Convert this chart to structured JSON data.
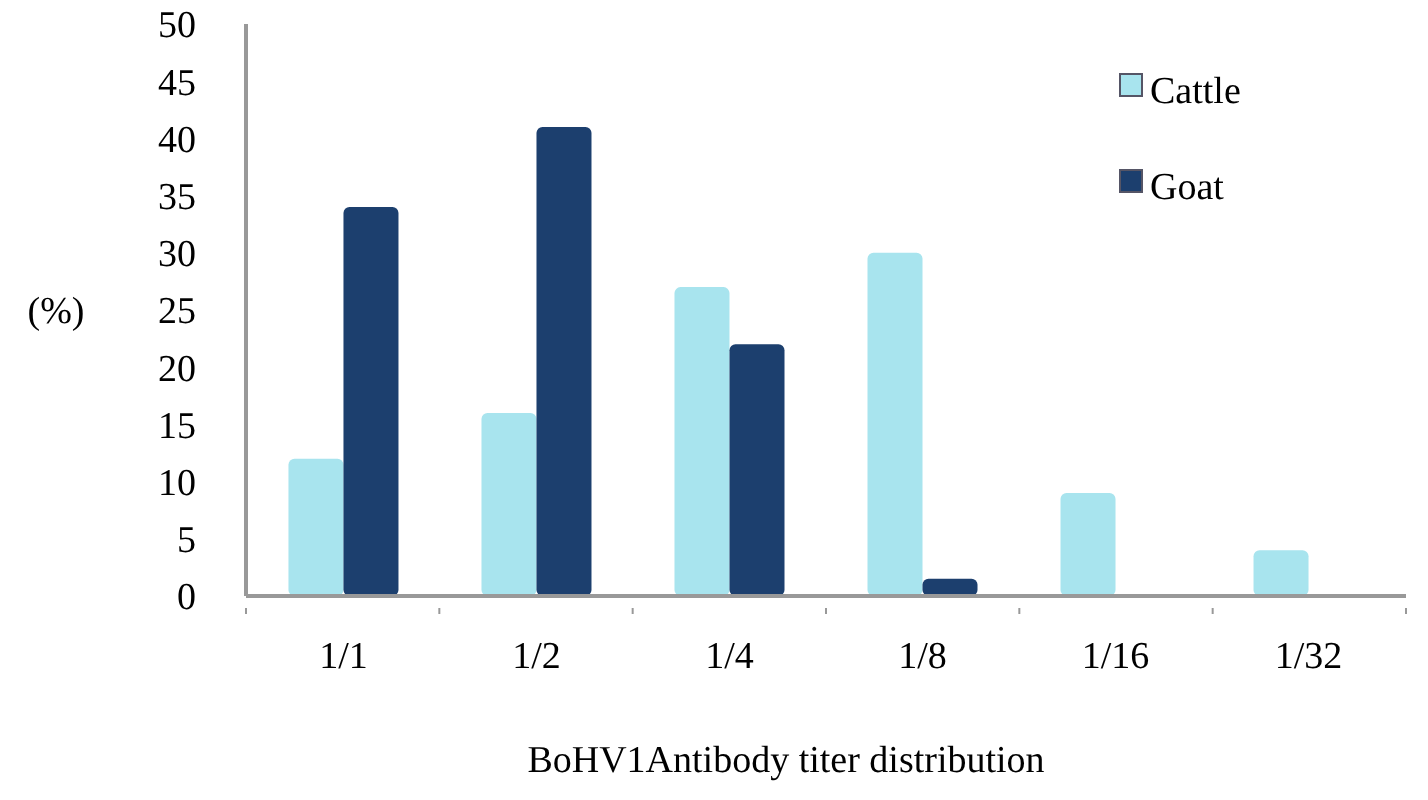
{
  "chart_data": {
    "type": "bar",
    "xlabel": "BoHV1Antibody titer distribution",
    "ylabel": "(%)",
    "categories": [
      "1/1",
      "1/2",
      "1/4",
      "1/8",
      "1/16",
      "1/32"
    ],
    "series": [
      {
        "name": "Cattle",
        "color": "#a8e4ee",
        "values": [
          12,
          16,
          27,
          30,
          9,
          4
        ]
      },
      {
        "name": "Goat",
        "color": "#1c3f6e",
        "values": [
          34,
          41,
          22,
          1.5,
          0,
          0
        ]
      }
    ],
    "ylim": [
      0,
      50
    ],
    "yticks": [
      0,
      5,
      10,
      15,
      20,
      25,
      30,
      35,
      40,
      45,
      50
    ],
    "legend": "top right"
  }
}
